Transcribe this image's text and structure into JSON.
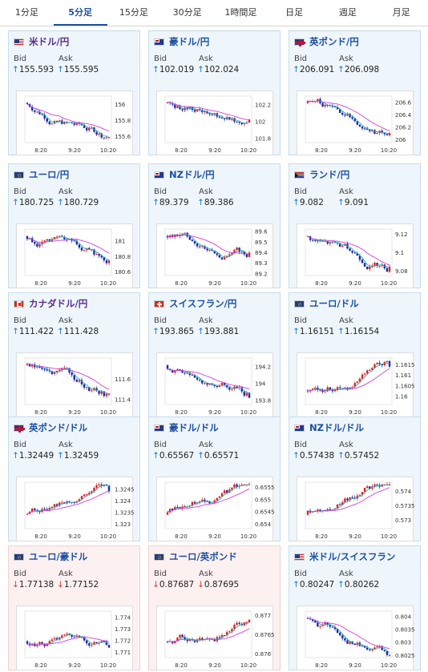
{
  "tabs": [
    {
      "label": "1分足",
      "active": false
    },
    {
      "label": "5分足",
      "active": true
    },
    {
      "label": "15分足",
      "active": false
    },
    {
      "label": "30分足",
      "active": false
    },
    {
      "label": "1時間足",
      "active": false
    },
    {
      "label": "日足",
      "active": false
    },
    {
      "label": "週足",
      "active": false
    },
    {
      "label": "月足",
      "active": false
    }
  ],
  "bid_label": "Bid",
  "ask_label": "Ask",
  "x_ticks": [
    "8:20",
    "9:20",
    "10:20"
  ],
  "colors": {
    "up": "#e02020",
    "down": "#1a2a9a",
    "ma_short": "#2ab0c0",
    "ma_long": "#d040d0"
  },
  "cards": [
    {
      "pair": "米ドル/円",
      "flag": "us",
      "dir": "up",
      "bid": "155.593",
      "ask": "155.595",
      "purple": true,
      "y_ticks": [
        "156",
        "155.8",
        "155.6"
      ],
      "ylim": [
        155.52,
        156.1
      ]
    },
    {
      "pair": "豪ドル/円",
      "flag": "au",
      "dir": "up",
      "bid": "102.019",
      "ask": "102.024",
      "purple": false,
      "y_ticks": [
        "102.2",
        "102",
        "101.8"
      ],
      "ylim": [
        101.75,
        102.3
      ]
    },
    {
      "pair": "英ポンド/円",
      "flag": "uk",
      "dir": "up",
      "bid": "206.091",
      "ask": "206.098",
      "purple": false,
      "y_ticks": [
        "206.6",
        "206.4",
        "206.2",
        "206"
      ],
      "ylim": [
        205.95,
        206.7
      ]
    },
    {
      "pair": "ユーロ/円",
      "flag": "eu",
      "dir": "up",
      "bid": "180.725",
      "ask": "180.729",
      "purple": false,
      "y_ticks": [
        "181",
        "180.8",
        "180.6"
      ],
      "ylim": [
        180.55,
        181.15
      ]
    },
    {
      "pair": "NZドル/円",
      "flag": "nz",
      "dir": "up",
      "bid": "89.379",
      "ask": "89.386",
      "purple": false,
      "y_ticks": [
        "89.6",
        "89.5",
        "89.4",
        "89.3",
        "89.2"
      ],
      "ylim": [
        89.18,
        89.62
      ]
    },
    {
      "pair": "ランド/円",
      "flag": "za",
      "dir": "up",
      "bid": "9.082",
      "ask": "9.091",
      "purple": false,
      "y_ticks": [
        "9.12",
        "9.1",
        "9.08"
      ],
      "ylim": [
        9.075,
        9.125
      ]
    },
    {
      "pair": "カナダドル/円",
      "flag": "ca",
      "dir": "up",
      "bid": "111.422",
      "ask": "111.428",
      "purple": true,
      "y_ticks": [
        "111.6",
        "111.4"
      ],
      "ylim": [
        111.35,
        111.8
      ]
    },
    {
      "pair": "スイスフラン/円",
      "flag": "ch",
      "dir": "up",
      "bid": "193.865",
      "ask": "193.881",
      "purple": false,
      "y_ticks": [
        "194.2",
        "194",
        "193.8"
      ],
      "ylim": [
        193.75,
        194.3
      ]
    },
    {
      "pair": "ユーロ/ドル",
      "flag": "eu",
      "dir": "up",
      "bid": "1.16151",
      "ask": "1.16154",
      "purple": false,
      "y_ticks": [
        "1.1615",
        "1.161",
        "1.1605",
        "1.16"
      ],
      "ylim": [
        1.1596,
        1.1618
      ]
    },
    {
      "pair": "英ポンド/ドル",
      "flag": "uk",
      "dir": "up",
      "bid": "1.32449",
      "ask": "1.32459",
      "purple": false,
      "y_ticks": [
        "1.3245",
        "1.324",
        "1.3235",
        "1.323"
      ],
      "ylim": [
        1.3228,
        1.3248
      ]
    },
    {
      "pair": "豪ドル/ドル",
      "flag": "au",
      "dir": "up",
      "bid": "0.65567",
      "ask": "0.65571",
      "purple": false,
      "y_ticks": [
        "0.6555",
        "0.655",
        "0.6545",
        "0.654"
      ],
      "ylim": [
        0.6538,
        0.6557
      ]
    },
    {
      "pair": "NZドル/ドル",
      "flag": "nz",
      "dir": "up",
      "bid": "0.57438",
      "ask": "0.57452",
      "purple": false,
      "y_ticks": [
        "0.574",
        "0.5735",
        "0.573"
      ],
      "ylim": [
        0.5727,
        0.5743
      ]
    },
    {
      "pair": "ユーロ/豪ドル",
      "flag": "eu",
      "dir": "down",
      "bid": "1.77138",
      "ask": "1.77152",
      "purple": false,
      "y_ticks": [
        "1.774",
        "1.773",
        "1.772",
        "1.771"
      ],
      "ylim": [
        1.7705,
        1.7745
      ]
    },
    {
      "pair": "ユーロ/英ポンド",
      "flag": "eu",
      "dir": "down",
      "bid": "0.87687",
      "ask": "0.87695",
      "purple": false,
      "y_ticks": [
        "0.877",
        "0.8765",
        "0.876"
      ],
      "ylim": [
        0.8759,
        0.8771
      ]
    },
    {
      "pair": "米ドル/スイスフラン",
      "flag": "us",
      "dir": "up",
      "bid": "0.80247",
      "ask": "0.80262",
      "purple": false,
      "y_ticks": [
        "0.804",
        "0.8035",
        "0.803",
        "0.8025"
      ],
      "ylim": [
        0.8024,
        0.8042
      ]
    }
  ]
}
